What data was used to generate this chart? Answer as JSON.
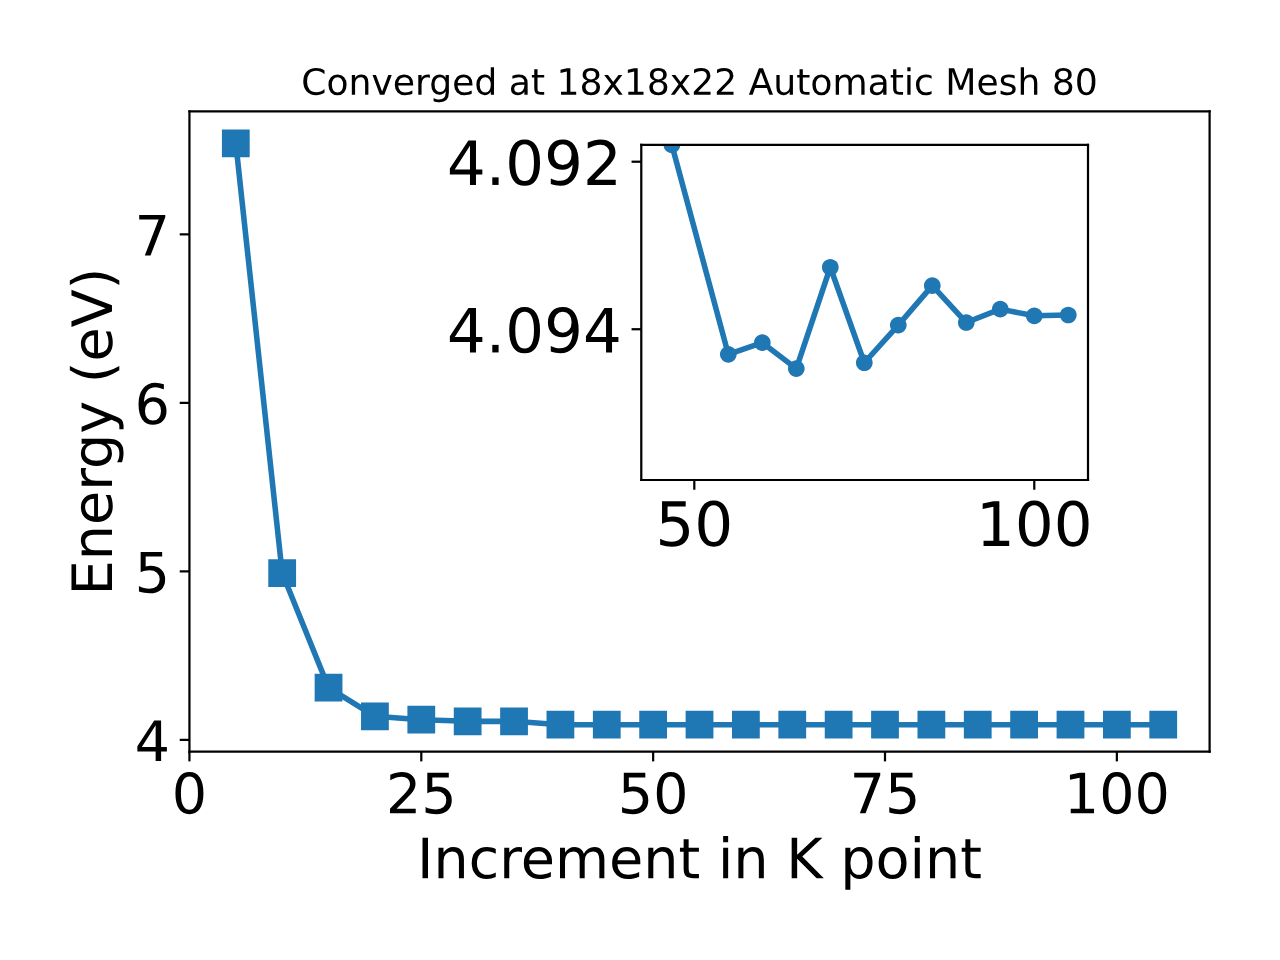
{
  "chart_data": [
    {
      "type": "line",
      "title": "Converged at 18x18x22 Automatic Mesh 80",
      "xlabel": "Increment in K point",
      "ylabel": "Energy (eV)",
      "marker": "square",
      "line_style": "solid",
      "grid": false,
      "legend": false,
      "x": [
        5,
        10,
        15,
        20,
        25,
        30,
        35,
        40,
        45,
        50,
        55,
        60,
        65,
        70,
        75,
        80,
        85,
        90,
        95,
        100,
        105
      ],
      "series": [
        {
          "color": "#1f77b4",
          "values": [
            7.54,
            4.99,
            4.31,
            4.14,
            4.12,
            4.11,
            4.11,
            4.09,
            4.09,
            4.09,
            4.09,
            4.09,
            4.09,
            4.09,
            4.09,
            4.09,
            4.09,
            4.09,
            4.09,
            4.09,
            4.09
          ]
        }
      ],
      "xlim": [
        0,
        110
      ],
      "ylim": [
        3.93,
        7.73
      ],
      "xticks": [
        0,
        25,
        50,
        75,
        100
      ],
      "yticks": [
        4,
        5,
        6,
        7
      ]
    },
    {
      "type": "line",
      "marker": "circle",
      "line_style": "solid",
      "grid": false,
      "legend": false,
      "x": [
        46.7,
        55,
        60,
        65,
        70,
        75,
        80,
        85,
        90,
        95,
        100,
        105
      ],
      "series": [
        {
          "color": "#1f77b4",
          "values": [
            4.0918,
            4.0943,
            4.09416,
            4.09447,
            4.09326,
            4.0944,
            4.09395,
            4.09348,
            4.09392,
            4.09376,
            4.09384,
            4.09383
          ]
        }
      ],
      "xlim": [
        42.2,
        107.9
      ],
      "ylim": [
        4.0958,
        4.0918
      ],
      "xticks": [
        50,
        100
      ],
      "yticks": [
        {
          "value": 4.092,
          "label": "4.092"
        },
        {
          "value": 4.094,
          "label": "4.094"
        }
      ]
    }
  ]
}
